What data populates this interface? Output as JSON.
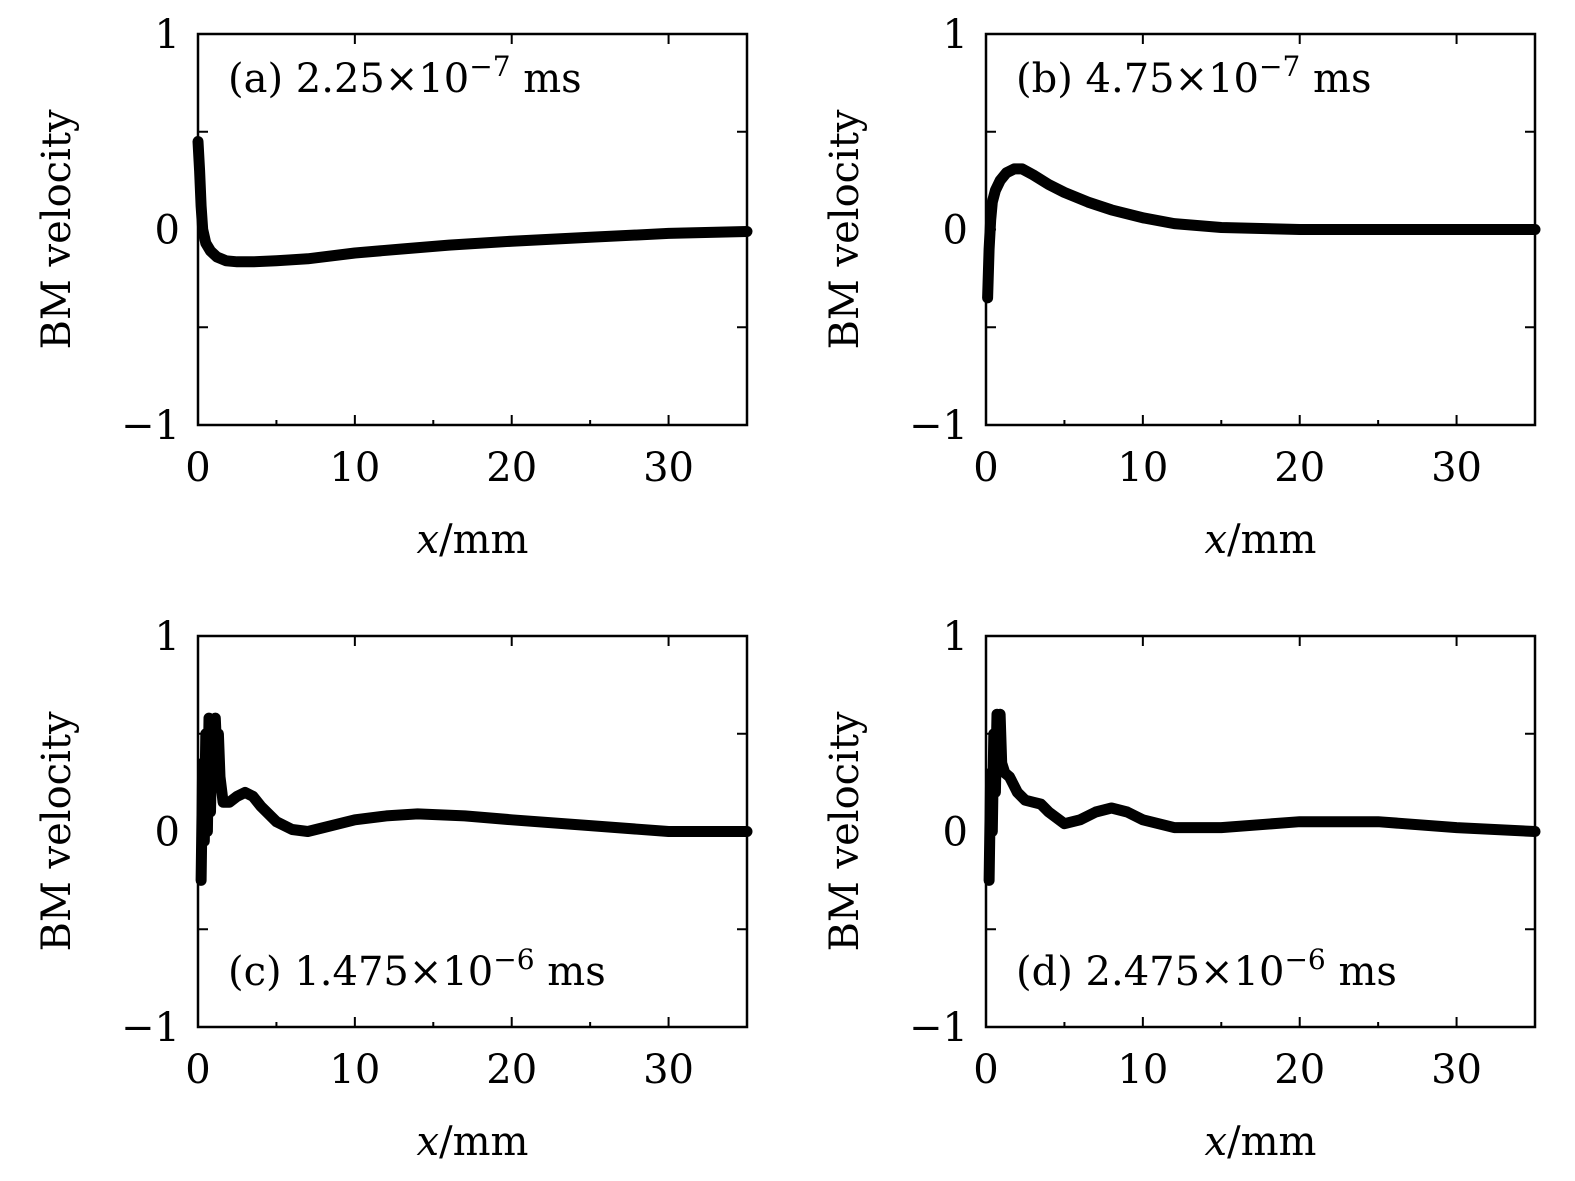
{
  "chart_data": [
    {
      "type": "line",
      "panel": "(a)",
      "time_text": "2.25×10",
      "exponent": "−7",
      "unit": "ms",
      "xlabel": "x/mm",
      "ylabel": "BM velocity",
      "xlim": [
        0,
        35
      ],
      "ylim": [
        -1,
        1
      ],
      "xticks": [
        "0",
        "10",
        "20",
        "30"
      ],
      "yticks": [
        "1",
        "0",
        "−1"
      ],
      "series": [
        {
          "x": [
            0,
            0.1,
            0.2,
            0.3,
            0.5,
            0.8,
            1.2,
            1.8,
            2.5,
            3.5,
            5,
            7,
            10,
            13,
            16,
            20,
            25,
            30,
            35
          ],
          "y": [
            0.45,
            0.3,
            0.12,
            0.0,
            -0.07,
            -0.11,
            -0.14,
            -0.16,
            -0.165,
            -0.165,
            -0.16,
            -0.15,
            -0.12,
            -0.1,
            -0.08,
            -0.06,
            -0.04,
            -0.02,
            -0.01
          ]
        }
      ]
    },
    {
      "type": "line",
      "panel": "(b)",
      "time_text": "4.75×10",
      "exponent": "−7",
      "unit": "ms",
      "xlabel": "x/mm",
      "ylabel": "BM velocity",
      "xlim": [
        0,
        35
      ],
      "ylim": [
        -1,
        1
      ],
      "xticks": [
        "0",
        "10",
        "20",
        "30"
      ],
      "yticks": [
        "1",
        "0",
        "−1"
      ],
      "series": [
        {
          "x": [
            0.1,
            0.2,
            0.3,
            0.4,
            0.6,
            0.9,
            1.3,
            1.8,
            2.3,
            3,
            4,
            5,
            6.5,
            8,
            10,
            12,
            15,
            20,
            25,
            30,
            35
          ],
          "y": [
            -0.35,
            -0.1,
            0.05,
            0.14,
            0.2,
            0.25,
            0.29,
            0.31,
            0.31,
            0.28,
            0.23,
            0.19,
            0.14,
            0.1,
            0.06,
            0.03,
            0.01,
            0.0,
            0.0,
            0.0,
            0.0
          ]
        }
      ]
    },
    {
      "type": "line",
      "panel": "(c)",
      "time_text": "1.475×10",
      "exponent": "−6",
      "unit": "ms",
      "xlabel": "x/mm",
      "ylabel": "BM velocity",
      "xlim": [
        0,
        35
      ],
      "ylim": [
        -1,
        1
      ],
      "xticks": [
        "0",
        "10",
        "20",
        "30"
      ],
      "yticks": [
        "1",
        "0",
        "−1"
      ],
      "series": [
        {
          "x": [
            0.2,
            0.3,
            0.4,
            0.5,
            0.6,
            0.7,
            0.8,
            0.9,
            1.0,
            1.1,
            1.2,
            1.3,
            1.4,
            1.6,
            2,
            2.5,
            3,
            3.5,
            4,
            5,
            6,
            7,
            8,
            10,
            12,
            14,
            17,
            20,
            25,
            30,
            35
          ],
          "y": [
            -0.25,
            0.35,
            -0.05,
            0.5,
            0.0,
            0.58,
            0.1,
            0.55,
            0.3,
            0.58,
            0.4,
            0.5,
            0.28,
            0.15,
            0.15,
            0.18,
            0.2,
            0.18,
            0.13,
            0.05,
            0.01,
            0.0,
            0.02,
            0.06,
            0.08,
            0.09,
            0.08,
            0.06,
            0.03,
            0.0,
            0.0
          ]
        }
      ]
    },
    {
      "type": "line",
      "panel": "(d)",
      "time_text": "2.475×10",
      "exponent": "−6",
      "unit": "ms",
      "xlabel": "x/mm",
      "ylabel": "BM velocity",
      "xlim": [
        0,
        35
      ],
      "ylim": [
        -1,
        1
      ],
      "xticks": [
        "0",
        "10",
        "20",
        "30"
      ],
      "yticks": [
        "1",
        "0",
        "−1"
      ],
      "series": [
        {
          "x": [
            0.2,
            0.3,
            0.4,
            0.5,
            0.6,
            0.7,
            0.8,
            0.9,
            1.0,
            1.2,
            1.5,
            2,
            2.5,
            3,
            3.5,
            4,
            5,
            6,
            7,
            8,
            9,
            10,
            12,
            15,
            20,
            25,
            30,
            35
          ],
          "y": [
            -0.25,
            0.3,
            0.0,
            0.5,
            0.2,
            0.6,
            0.45,
            0.6,
            0.35,
            0.3,
            0.28,
            0.2,
            0.16,
            0.15,
            0.14,
            0.1,
            0.04,
            0.06,
            0.1,
            0.12,
            0.1,
            0.06,
            0.02,
            0.02,
            0.05,
            0.05,
            0.02,
            0.0
          ]
        }
      ]
    }
  ]
}
